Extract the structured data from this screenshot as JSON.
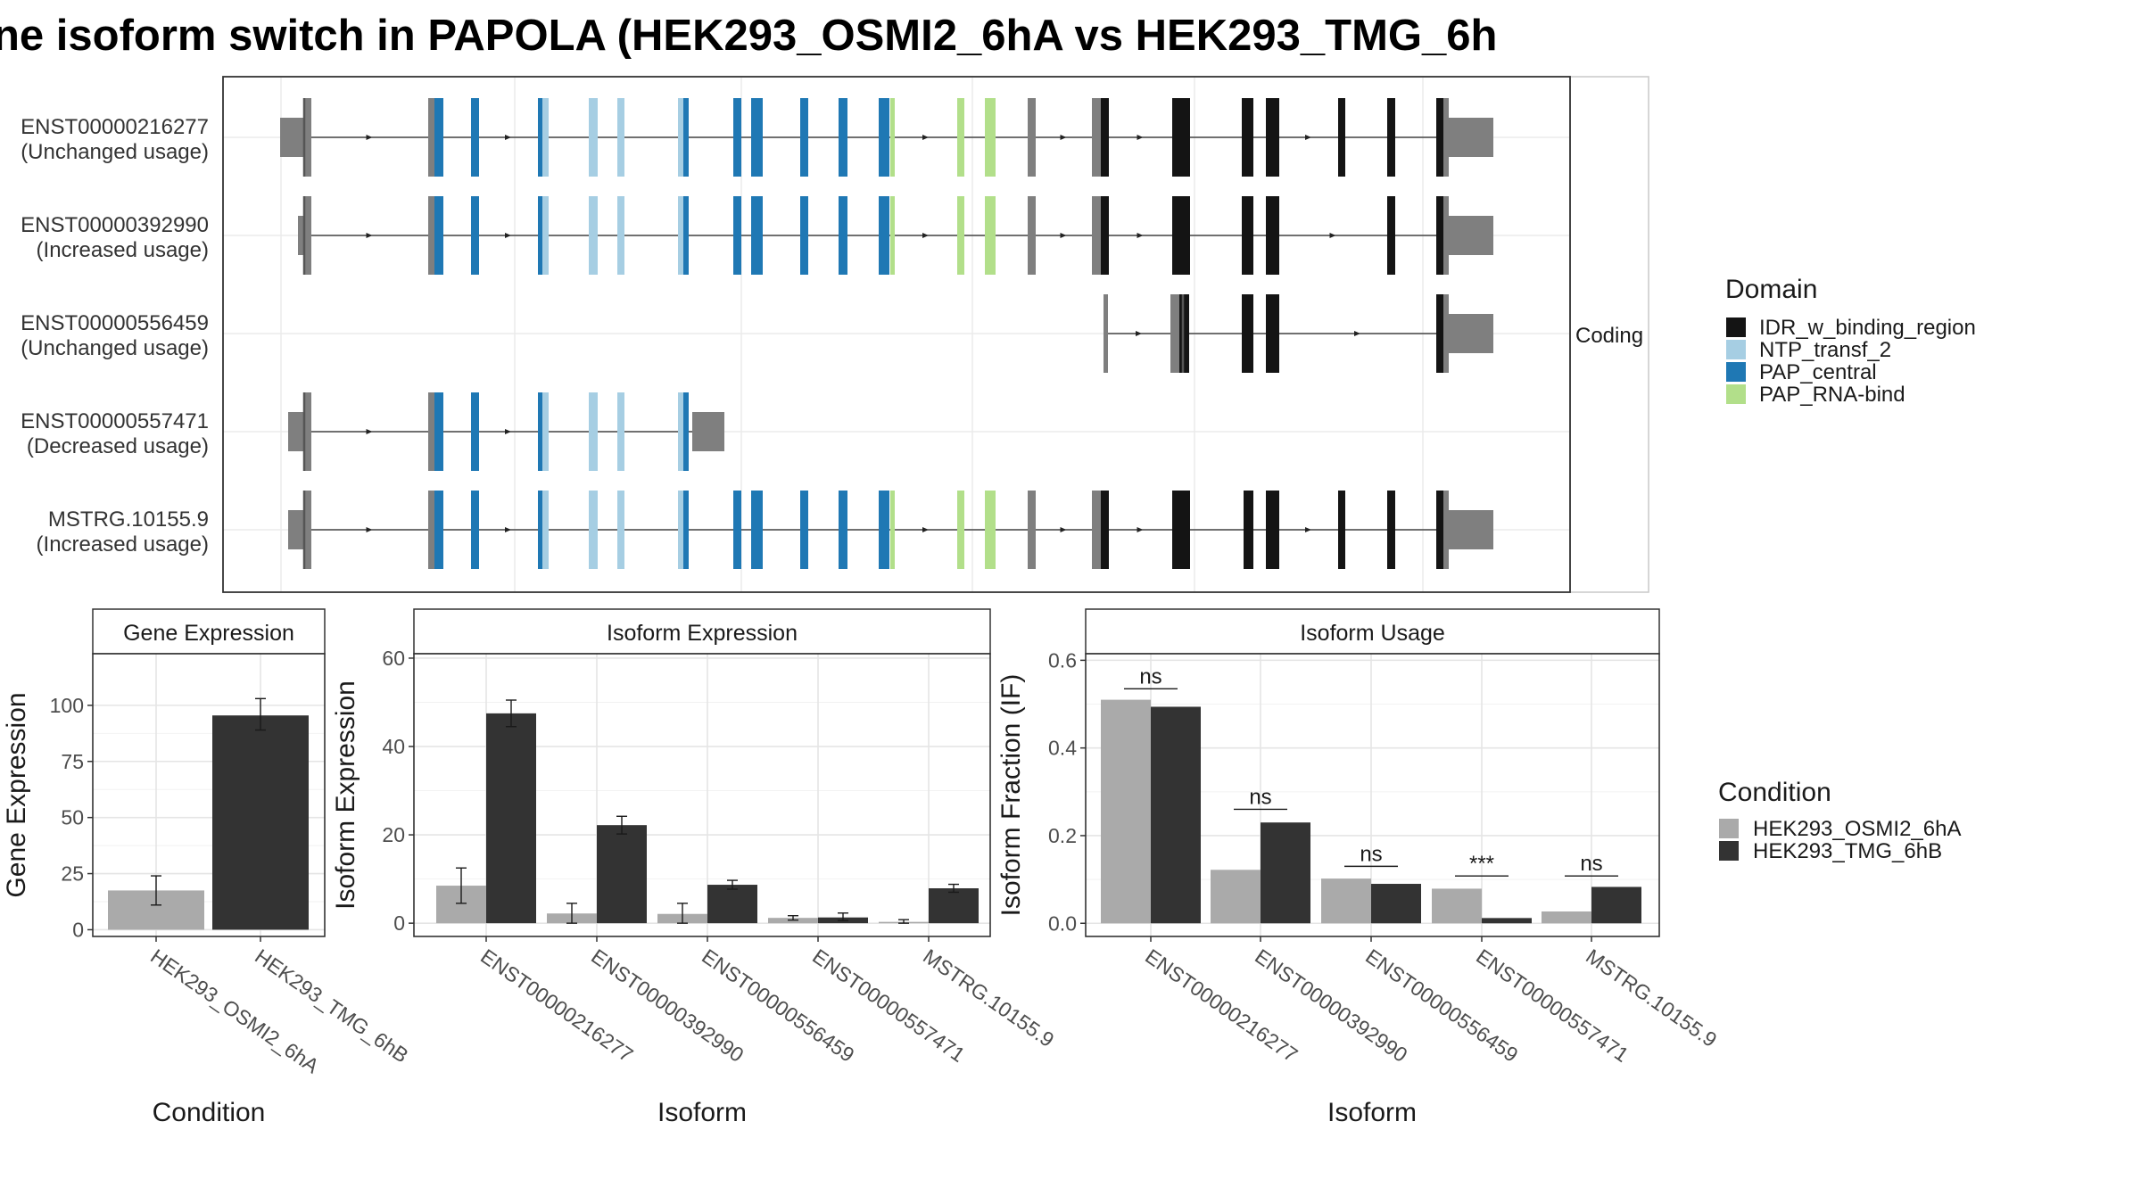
{
  "title": "ne isoform switch in PAPOLA (HEK293_OSMI2_6hA vs HEK293_TMG_6h",
  "structure": {
    "facet_label": "Coding",
    "transcripts": [
      {
        "id": "ENST00000216277",
        "status": "(Unchanged usage)"
      },
      {
        "id": "ENST00000392990",
        "status": "(Increased usage)"
      },
      {
        "id": "ENST00000556459",
        "status": "(Unchanged usage)"
      },
      {
        "id": "ENST00000557471",
        "status": "(Decreased usage)"
      },
      {
        "id": "MSTRG.10155.9",
        "status": "(Increased usage)"
      }
    ]
  },
  "legend_domain": {
    "title": "Domain",
    "items": [
      {
        "label": "IDR_w_binding_region",
        "color": "#141414"
      },
      {
        "label": "NTP_transf_2",
        "color": "#a6cee3"
      },
      {
        "label": "PAP_central",
        "color": "#1f78b4"
      },
      {
        "label": "PAP_RNA-bind",
        "color": "#b2df8a"
      }
    ]
  },
  "legend_condition": {
    "title": "Condition",
    "items": [
      {
        "label": "HEK293_OSMI2_6hA",
        "color": "#aaaaaa"
      },
      {
        "label": "HEK293_TMG_6hB",
        "color": "#333333"
      }
    ]
  },
  "chart_data": [
    {
      "type": "bar",
      "title": "Gene Expression",
      "xlabel": "Condition",
      "ylabel": "Gene Expression",
      "categories": [
        "HEK293_OSMI2_6hA",
        "HEK293_TMG_6hB"
      ],
      "values": [
        17.5,
        95.5
      ],
      "errors": [
        [
          11,
          24
        ],
        [
          89,
          103
        ]
      ],
      "colors": [
        "#aaaaaa",
        "#333333"
      ],
      "ylim": [
        -3,
        123
      ],
      "yticks": [
        0,
        25,
        50,
        75,
        100
      ],
      "grid": true
    },
    {
      "type": "bar",
      "title": "Isoform Expression",
      "xlabel": "Isoform",
      "ylabel": "Isoform Expression",
      "categories": [
        "ENST00000216277",
        "ENST00000392990",
        "ENST00000556459",
        "ENST00000557471",
        "MSTRG.10155.9"
      ],
      "series": [
        {
          "name": "HEK293_OSMI2_6hA",
          "values": [
            8.5,
            2.2,
            2.1,
            1.2,
            0.3
          ],
          "errors": [
            [
              4.5,
              12.5
            ],
            [
              0,
              4.5
            ],
            [
              0,
              4.5
            ],
            [
              0.7,
              1.7
            ],
            [
              0,
              0.8
            ]
          ]
        },
        {
          "name": "HEK293_TMG_6hB",
          "values": [
            47.5,
            22.2,
            8.7,
            1.3,
            7.9
          ],
          "errors": [
            [
              44.5,
              50.5
            ],
            [
              20.2,
              24.2
            ],
            [
              7.7,
              9.7
            ],
            [
              0.6,
              2.3
            ],
            [
              7.0,
              8.8
            ]
          ]
        }
      ],
      "ylim": [
        -3,
        61
      ],
      "yticks": [
        0,
        20,
        40,
        60
      ],
      "grid": true
    },
    {
      "type": "bar",
      "title": "Isoform Usage",
      "xlabel": "Isoform",
      "ylabel": "Isoform Fraction (IF)",
      "categories": [
        "ENST00000216277",
        "ENST00000392990",
        "ENST00000556459",
        "ENST00000557471",
        "MSTRG.10155.9"
      ],
      "series": [
        {
          "name": "HEK293_OSMI2_6hA",
          "values": [
            0.51,
            0.122,
            0.102,
            0.079,
            0.027
          ]
        },
        {
          "name": "HEK293_TMG_6hB",
          "values": [
            0.494,
            0.23,
            0.09,
            0.012,
            0.083
          ]
        }
      ],
      "annotations": [
        "ns",
        "ns",
        "ns",
        "***",
        "ns"
      ],
      "annotation_y": [
        0.535,
        0.26,
        0.13,
        0.108,
        0.108
      ],
      "ylim": [
        -0.03,
        0.615
      ],
      "yticks": [
        0.0,
        0.2,
        0.4,
        0.6
      ],
      "yticklabels": [
        "0.0",
        "0.2",
        "0.4",
        "0.6"
      ],
      "grid": true
    }
  ]
}
